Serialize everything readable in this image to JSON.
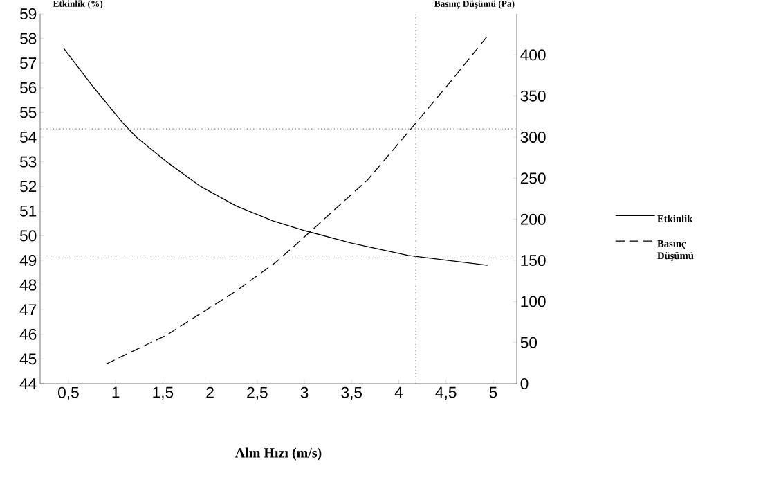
{
  "chart_data": {
    "type": "line",
    "xlabel": "Alın Hızı (m/s)",
    "ylabel": "Etkinlik (%)",
    "y2label": "Basınç Düşümü (Pa)",
    "xlim": [
      0.2,
      5.25
    ],
    "ylim": [
      44,
      59
    ],
    "y2lim": [
      0,
      450
    ],
    "xticks": [
      {
        "value": 0.5,
        "label": "0,5"
      },
      1,
      {
        "value": 1.5,
        "label": "1,5"
      },
      2,
      {
        "value": 2.5,
        "label": "2,5"
      },
      3,
      {
        "value": 3.5,
        "label": "3,5"
      },
      4,
      {
        "value": 4.5,
        "label": "4,5"
      },
      5
    ],
    "yticks": [
      44,
      45,
      46,
      47,
      48,
      49,
      50,
      51,
      52,
      53,
      54,
      55,
      56,
      57,
      58,
      59
    ],
    "y2ticks": [
      0,
      50,
      100,
      150,
      200,
      250,
      300,
      350,
      400
    ],
    "legend": "right",
    "series": [
      {
        "name": "Etkinlik",
        "color": "#000000",
        "line_style": "solid",
        "x": [
          0.45,
          0.77,
          1.07,
          1.22,
          1.54,
          1.9,
          2.28,
          2.67,
          3.01,
          3.5,
          4.1,
          4.94
        ],
        "values": [
          57.6,
          56.0,
          54.6,
          54.0,
          53.0,
          52.0,
          51.2,
          50.6,
          50.2,
          49.7,
          49.2,
          48.8
        ]
      },
      {
        "name": "Basınç Düşümü",
        "color": "#000000",
        "line_style": "dashed",
        "axis": "y2",
        "x": [
          0.9,
          1.54,
          2.28,
          2.69,
          2.87,
          3.13,
          3.67,
          4.18,
          4.56,
          4.94
        ],
        "values": [
          24,
          59,
          113,
          147,
          165,
          192,
          248,
          317,
          369,
          423
        ]
      }
    ],
    "ref_lines": [
      {
        "axis": "x",
        "value": 4.18,
        "color": "#808080",
        "line_style": "dotted"
      },
      {
        "axis": "y",
        "value": 49.1,
        "color": "#808080",
        "line_style": "dotted"
      },
      {
        "axis": "y2",
        "value": 310,
        "color": "#808080",
        "line_style": "dotted"
      }
    ]
  }
}
